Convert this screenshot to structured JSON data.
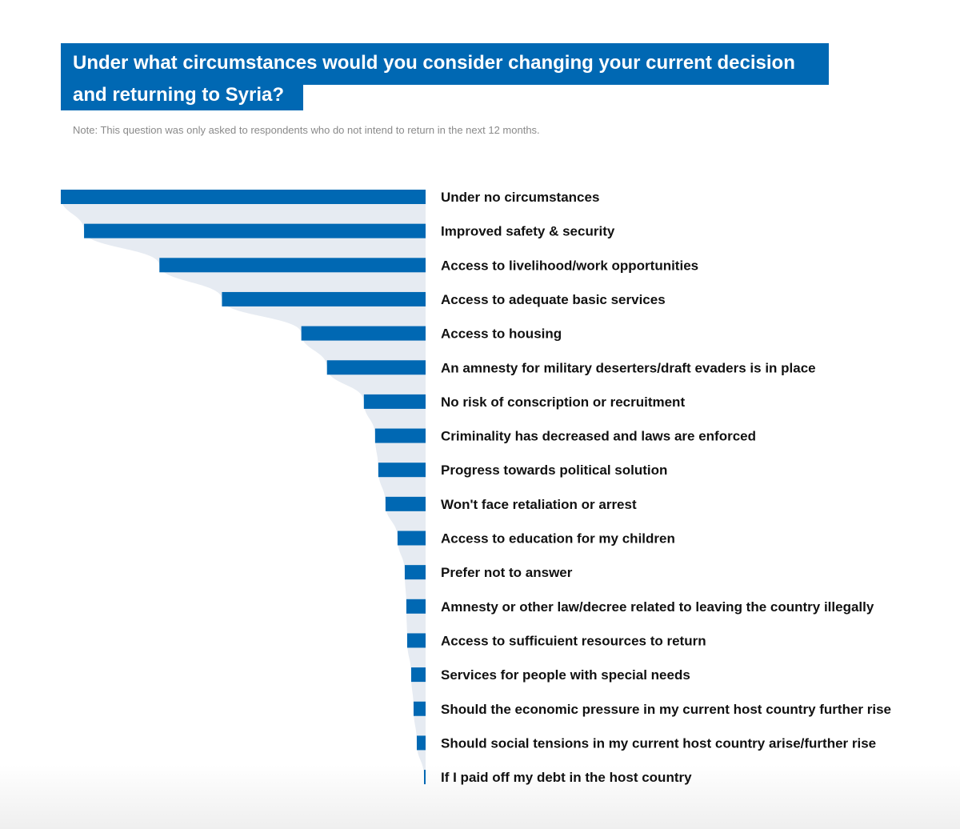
{
  "title": {
    "line1": "Under what circumstances would you consider changing your current decision",
    "line2": "and returning to Syria?"
  },
  "note": "Note: This question was only asked to respondents who do not intend to return in the next 12 months.",
  "colors": {
    "bar": "#0068b3",
    "area": "#e6ebf2",
    "title_bg": "#0068b3"
  },
  "chart_data": {
    "type": "bar",
    "orientation": "horizontal",
    "bar_direction": "right-to-left",
    "categories": [
      "Under no circumstances",
      "Improved safety & security",
      "Access to livelihood/work opportunities",
      "Access to adequate basic services",
      "Access to housing",
      "An amnesty for military deserters/draft evaders is in place",
      "No risk of conscription or recruitment",
      "Criminality has decreased and laws are enforced",
      "Progress towards political solution",
      "Won't face retaliation or arrest",
      "Access to education for my children",
      "Prefer not to answer",
      "Amnesty or other law/decree related to leaving the country illegally",
      "Access to sufficuient resources to return",
      "Services for people with special needs",
      "Should the economic pressure in my current host country further rise",
      "Should social tensions in my current host country arise/further rise",
      "If I paid off my debt in the host country"
    ],
    "values": [
      45.5,
      42.6,
      33.2,
      25.4,
      15.5,
      12.3,
      7.7,
      6.3,
      5.9,
      5.0,
      3.5,
      2.6,
      2.4,
      2.3,
      1.8,
      1.5,
      1.1,
      0.2
    ],
    "xlim": [
      0,
      45.5
    ],
    "grid": false,
    "legend": "none",
    "data_labels": false
  }
}
